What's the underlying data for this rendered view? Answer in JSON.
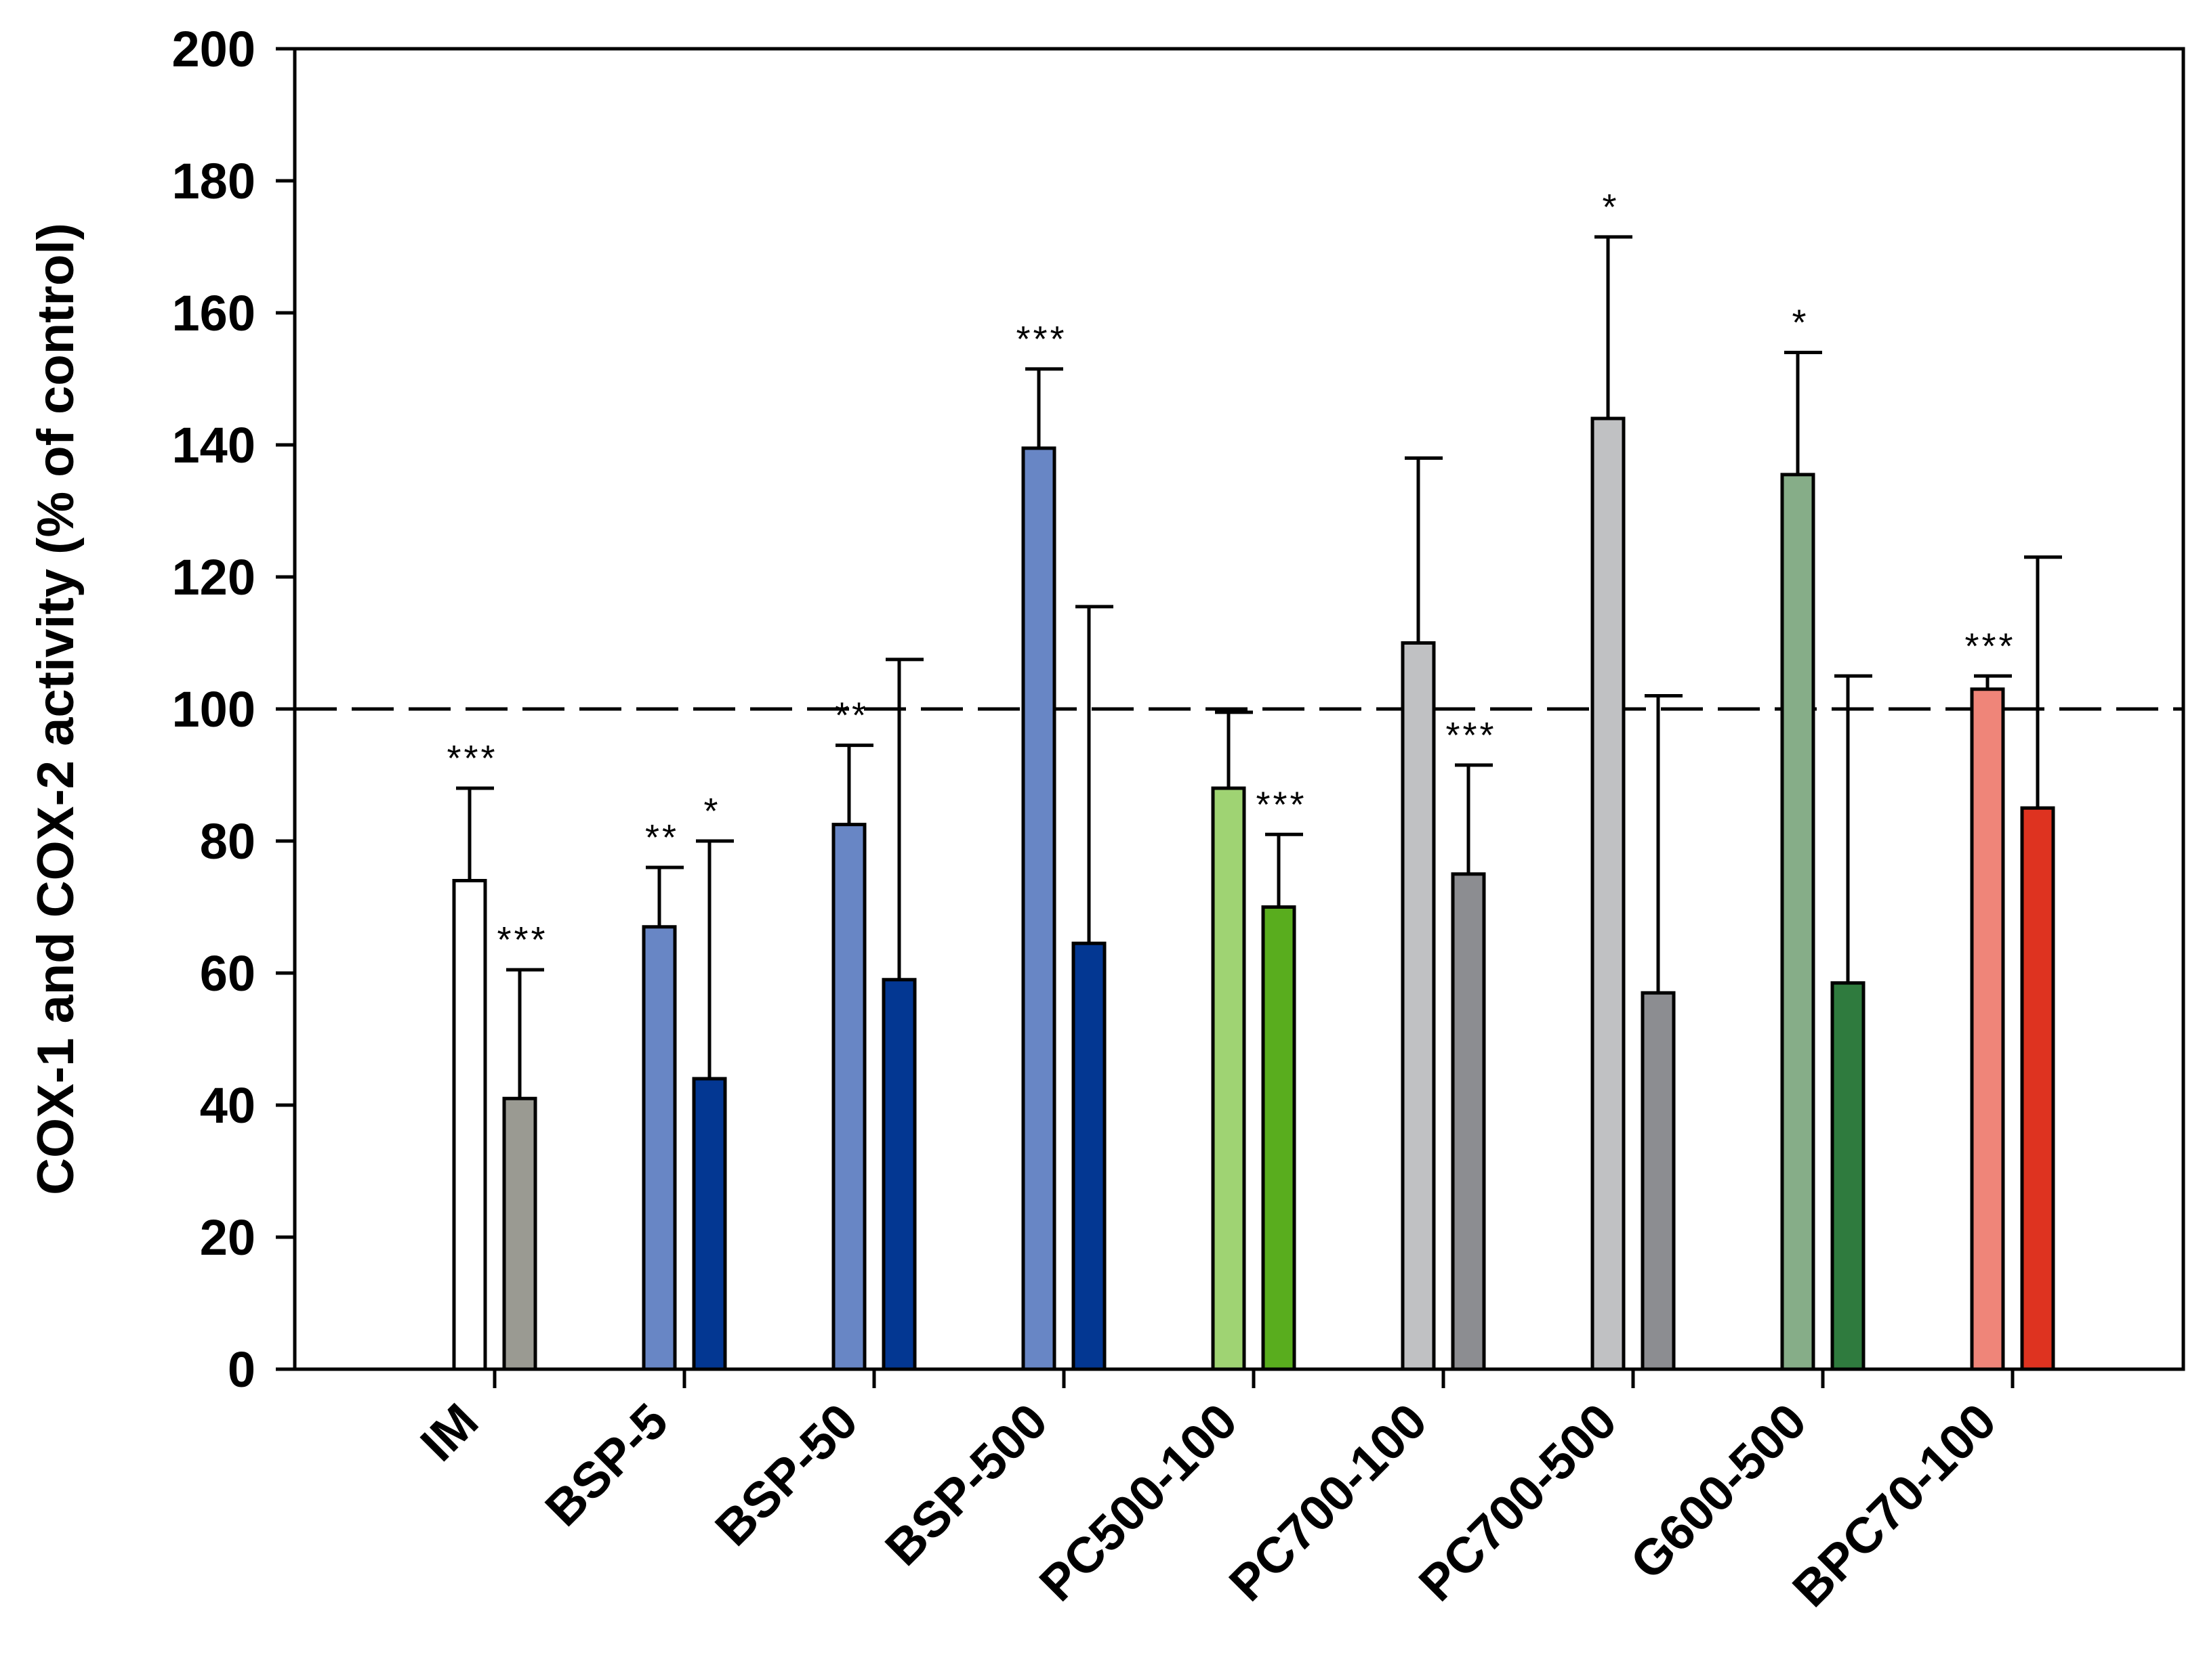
{
  "chart_data": {
    "type": "bar",
    "title": "",
    "xlabel": "",
    "ylabel": "COX-1 and COX-2 activity (% of control)",
    "ylim": [
      0,
      200
    ],
    "yticks": [
      0,
      20,
      40,
      60,
      80,
      100,
      120,
      140,
      160,
      180,
      200
    ],
    "ytick_labels": [
      "0",
      "20",
      "40",
      "60",
      "80",
      "100",
      "120",
      "140",
      "160",
      "180",
      "200"
    ],
    "reference_line": 100,
    "categories": [
      "IM",
      "BSP-5",
      "BSP-50",
      "BSP-500",
      "PC500-100",
      "PC700-100",
      "PC700-500",
      "G600-500",
      "BPC70-100"
    ],
    "series": [
      {
        "name": "COX-1",
        "values": [
          74,
          67,
          82.5,
          139.5,
          88,
          110,
          144,
          135.5,
          103
        ],
        "errors": [
          14,
          9,
          12,
          12,
          11.5,
          28,
          27.5,
          18.5,
          2
        ],
        "significance": [
          "***",
          "**",
          "**",
          "***",
          "",
          "",
          "*",
          "*",
          "***"
        ],
        "colors": [
          "#ffffff",
          "#6886c5",
          "#6886c5",
          "#6886c5",
          "#9fd373",
          "#c0c1c3",
          "#c0c1c3",
          "#86ad88",
          "#ef8579"
        ]
      },
      {
        "name": "COX-2",
        "values": [
          41,
          44,
          59,
          64.5,
          70,
          75,
          57,
          58.5,
          85
        ],
        "errors": [
          19.5,
          36,
          48.5,
          51,
          11,
          16.5,
          45,
          46.5,
          38
        ],
        "significance": [
          "***",
          "*",
          "",
          "",
          "***",
          "***",
          "",
          "",
          ""
        ],
        "colors": [
          "#9a9a92",
          "#033792",
          "#033792",
          "#033792",
          "#59ad1e",
          "#8c8d91",
          "#8c8d91",
          "#2f7b3e",
          "#de3320"
        ]
      }
    ]
  }
}
